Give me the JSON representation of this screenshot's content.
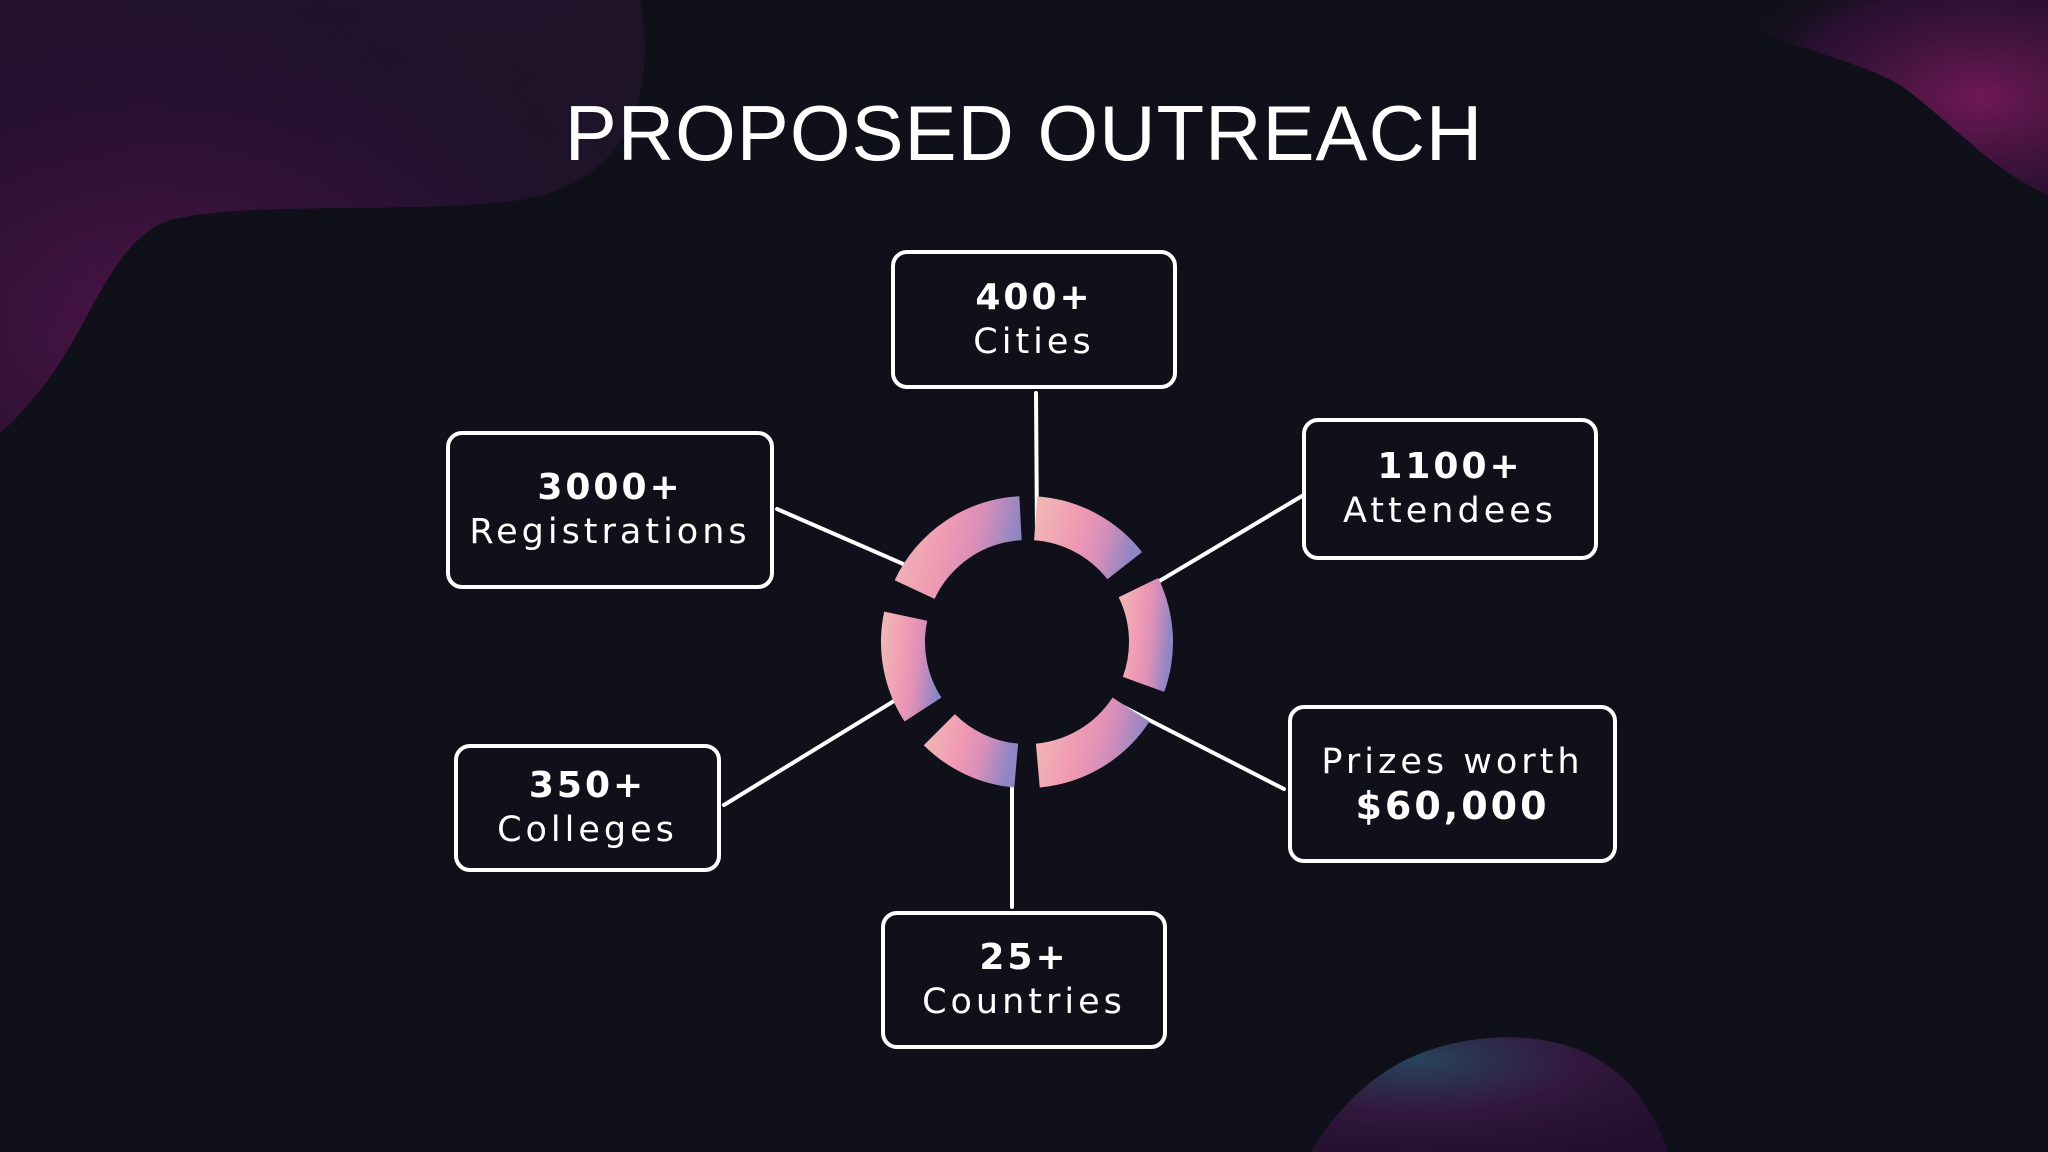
{
  "title": "PROPOSED OUTREACH",
  "colors": {
    "background": "#10101a",
    "box_border": "#ffffff",
    "ring_pink": "#f0a0b8",
    "ring_violet": "#8f86c4",
    "ring_peach": "#efbcb4",
    "blob_magenta": "#5a1450",
    "blob_teal": "#2a4a62"
  },
  "stats": {
    "cities": {
      "value": "400+",
      "label": "Cities"
    },
    "attendees": {
      "value": "1100+",
      "label": "Attendees"
    },
    "prizes": {
      "label": "Prizes worth",
      "value": "$60,000"
    },
    "countries": {
      "value": "25+",
      "label": "Countries"
    },
    "colleges": {
      "value": "350+",
      "label": "Colleges"
    },
    "registrations": {
      "value": "3000+",
      "label": "Registrations"
    }
  }
}
